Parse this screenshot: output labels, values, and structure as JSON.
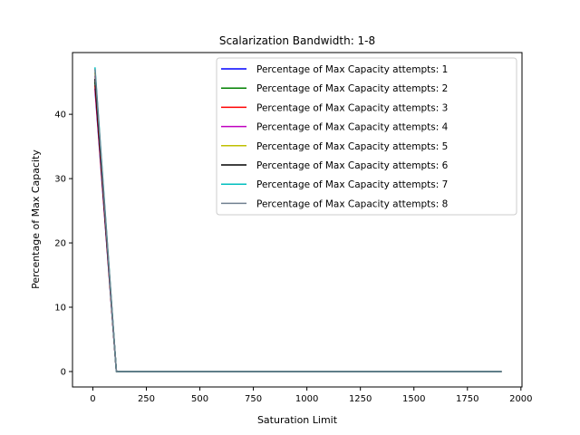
{
  "chart_data": {
    "type": "line",
    "title": "Scalarization Bandwidth: 1-8",
    "xlabel": "Saturation Limit",
    "ylabel": "Percentage of Max Capacity",
    "xlim": [
      -95,
      2005
    ],
    "ylim": [
      -2.4,
      49.6
    ],
    "xticks": [
      0,
      250,
      500,
      750,
      1000,
      1250,
      1500,
      1750,
      2000
    ],
    "yticks": [
      0,
      10,
      20,
      30,
      40
    ],
    "x": [
      10,
      110,
      210,
      410,
      610,
      810,
      1010,
      1210,
      1410,
      1610,
      1810,
      1910
    ],
    "series": [
      {
        "name": "Percentage of Max Capacity attempts: 1",
        "color": "#0000ff",
        "values": [
          44.0,
          0,
          0,
          0,
          0,
          0,
          0,
          0,
          0,
          0,
          0,
          0
        ]
      },
      {
        "name": "Percentage of Max Capacity attempts: 2",
        "color": "#008000",
        "values": [
          45.0,
          0,
          0,
          0,
          0,
          0,
          0,
          0,
          0,
          0,
          0,
          0
        ]
      },
      {
        "name": "Percentage of Max Capacity attempts: 3",
        "color": "#ff0000",
        "values": [
          44.5,
          0,
          0,
          0,
          0,
          0,
          0,
          0,
          0,
          0,
          0,
          0
        ]
      },
      {
        "name": "Percentage of Max Capacity attempts: 4",
        "color": "#bf00bf",
        "values": [
          46.0,
          0,
          0,
          0,
          0,
          0,
          0,
          0,
          0,
          0,
          0,
          0
        ]
      },
      {
        "name": "Percentage of Max Capacity attempts: 5",
        "color": "#bfbf00",
        "values": [
          46.5,
          0,
          0,
          0,
          0,
          0,
          0,
          0,
          0,
          0,
          0,
          0
        ]
      },
      {
        "name": "Percentage of Max Capacity attempts: 6",
        "color": "#000000",
        "values": [
          45.5,
          0,
          0,
          0,
          0,
          0,
          0,
          0,
          0,
          0,
          0,
          0
        ]
      },
      {
        "name": "Percentage of Max Capacity attempts: 7",
        "color": "#00bfbf",
        "values": [
          47.3,
          0,
          0,
          0,
          0,
          0,
          0,
          0,
          0,
          0,
          0,
          0
        ]
      },
      {
        "name": "Percentage of Max Capacity attempts: 8",
        "color": "#708090",
        "values": [
          47.0,
          0,
          0,
          0,
          0,
          0,
          0,
          0,
          0,
          0,
          0,
          0
        ]
      }
    ],
    "legend": "top-right",
    "grid": false
  }
}
